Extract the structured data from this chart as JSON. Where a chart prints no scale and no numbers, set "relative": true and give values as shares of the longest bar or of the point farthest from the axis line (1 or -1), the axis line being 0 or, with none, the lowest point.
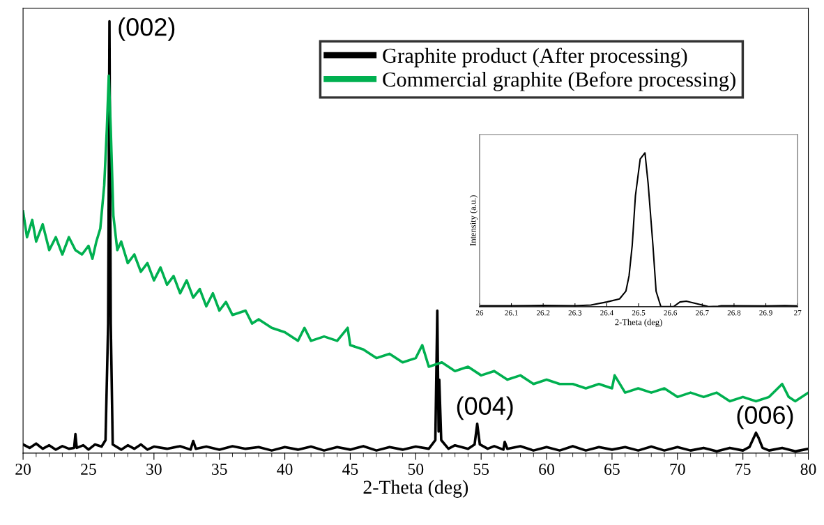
{
  "chart_data": [
    {
      "type": "line",
      "relative": true,
      "xlabel": "2-Theta (deg)",
      "xlim": [
        20,
        80
      ],
      "xticks": [
        20,
        25,
        30,
        35,
        40,
        45,
        50,
        55,
        60,
        65,
        70,
        75,
        80
      ],
      "tick_labels": "x",
      "legend": "top right",
      "grid": false,
      "marker": "none",
      "line_style": "solid",
      "series": [
        {
          "name": "Graphite product (After processing)",
          "color": "#000000",
          "x": [
            20,
            20.5,
            21,
            21.5,
            22,
            22.5,
            23,
            23.5,
            23.9,
            24,
            24.1,
            24.6,
            25,
            25.5,
            26,
            26.3,
            26.5,
            26.6,
            26.7,
            26.85,
            27.5,
            28,
            28.5,
            29,
            29.5,
            30,
            31,
            32,
            32.8,
            33,
            33.2,
            34,
            35,
            36,
            37,
            38,
            39,
            40,
            41,
            42,
            43,
            44,
            45,
            46,
            47,
            48,
            49,
            50,
            51,
            51.5,
            51.65,
            51.75,
            51.8,
            51.95,
            52.5,
            53,
            54,
            54.5,
            54.7,
            54.9,
            55.5,
            56,
            56.7,
            56.8,
            57,
            58,
            59,
            60,
            61,
            62,
            63,
            64,
            65,
            66,
            67,
            68,
            69,
            70,
            71,
            72,
            73,
            74,
            75,
            75.5,
            76,
            76.2,
            76.5,
            77,
            78,
            79,
            80
          ],
          "values": [
            0.02,
            0.012,
            0.022,
            0.01,
            0.018,
            0.008,
            0.016,
            0.01,
            0.012,
            0.044,
            0.012,
            0.018,
            0.008,
            0.02,
            0.015,
            0.03,
            0.3,
            1.0,
            0.3,
            0.02,
            0.008,
            0.018,
            0.01,
            0.02,
            0.008,
            0.015,
            0.01,
            0.016,
            0.008,
            0.028,
            0.01,
            0.015,
            0.008,
            0.016,
            0.01,
            0.014,
            0.006,
            0.014,
            0.008,
            0.015,
            0.006,
            0.014,
            0.008,
            0.016,
            0.006,
            0.014,
            0.008,
            0.015,
            0.01,
            0.03,
            0.33,
            0.05,
            0.17,
            0.03,
            0.01,
            0.018,
            0.01,
            0.02,
            0.068,
            0.02,
            0.01,
            0.016,
            0.008,
            0.026,
            0.01,
            0.016,
            0.006,
            0.014,
            0.006,
            0.016,
            0.006,
            0.014,
            0.008,
            0.014,
            0.006,
            0.015,
            0.006,
            0.014,
            0.006,
            0.012,
            0.004,
            0.012,
            0.006,
            0.014,
            0.047,
            0.035,
            0.012,
            0.006,
            0.012,
            0.004,
            0.01
          ]
        },
        {
          "name": "Commercial graphite (Before processing)",
          "color": "#00b050",
          "x": [
            20,
            20.3,
            20.7,
            21,
            21.5,
            22,
            22.5,
            23,
            23.5,
            24,
            24.5,
            25,
            25.3,
            25.6,
            25.9,
            26.2,
            26.4,
            26.55,
            26.7,
            26.9,
            27.2,
            27.5,
            28,
            28.5,
            29,
            29.5,
            30,
            30.5,
            31,
            31.5,
            32,
            32.5,
            33,
            33.5,
            34,
            34.5,
            35,
            35.5,
            36,
            37,
            37.5,
            38,
            39,
            40,
            41,
            41.5,
            42,
            43,
            44,
            44.8,
            45,
            46,
            47,
            48,
            49,
            50,
            50.5,
            51,
            52,
            53,
            54,
            55,
            56,
            57,
            58,
            59,
            60,
            61,
            62,
            63,
            64,
            65,
            65.2,
            66,
            67,
            68,
            69,
            70,
            71,
            72,
            73,
            74,
            75,
            76,
            77,
            78,
            78.5,
            79,
            80
          ],
          "values": [
            0.56,
            0.5,
            0.54,
            0.49,
            0.53,
            0.47,
            0.5,
            0.46,
            0.5,
            0.47,
            0.46,
            0.48,
            0.45,
            0.49,
            0.52,
            0.62,
            0.75,
            0.874,
            0.75,
            0.55,
            0.47,
            0.49,
            0.44,
            0.46,
            0.42,
            0.44,
            0.4,
            0.43,
            0.39,
            0.41,
            0.37,
            0.4,
            0.36,
            0.38,
            0.34,
            0.37,
            0.33,
            0.35,
            0.32,
            0.33,
            0.3,
            0.31,
            0.29,
            0.28,
            0.26,
            0.29,
            0.26,
            0.27,
            0.26,
            0.29,
            0.25,
            0.24,
            0.22,
            0.23,
            0.21,
            0.22,
            0.25,
            0.2,
            0.21,
            0.19,
            0.2,
            0.18,
            0.19,
            0.17,
            0.18,
            0.16,
            0.17,
            0.16,
            0.16,
            0.15,
            0.16,
            0.15,
            0.18,
            0.14,
            0.15,
            0.14,
            0.15,
            0.13,
            0.14,
            0.13,
            0.14,
            0.12,
            0.13,
            0.12,
            0.13,
            0.16,
            0.13,
            0.12,
            0.14
          ]
        }
      ],
      "annotations": [
        {
          "text": "(002)",
          "x": 26.6,
          "y": 1.0
        },
        {
          "text": "(004)",
          "x": 54.7,
          "y": 0.068
        },
        {
          "text": "(006)",
          "x": 76.1,
          "y": 0.047
        }
      ]
    },
    {
      "type": "line",
      "relative": true,
      "xlabel": "2-Theta (deg)",
      "ylabel": "Intensity (a.u.)",
      "xlim": [
        26,
        27
      ],
      "xticks": [
        26,
        26.1,
        26.2,
        26.3,
        26.4,
        26.5,
        26.6,
        26.7,
        26.8,
        26.9,
        27
      ],
      "tick_labels": "x",
      "grid": false,
      "marker": "none",
      "line_style": "solid",
      "series": [
        {
          "color": "#000000",
          "x": [
            26,
            26.1,
            26.2,
            26.3,
            26.35,
            26.4,
            26.44,
            26.46,
            26.47,
            26.48,
            26.49,
            26.505,
            26.52,
            26.53,
            26.545,
            26.555,
            26.57,
            26.61,
            26.63,
            26.65,
            26.7,
            26.72,
            26.75,
            26.76,
            26.8,
            26.9,
            26.96,
            27
          ],
          "values": [
            0.005,
            0.005,
            0.008,
            0.006,
            0.01,
            0.03,
            0.05,
            0.1,
            0.2,
            0.4,
            0.72,
            0.96,
            1.0,
            0.8,
            0.4,
            0.1,
            0.0,
            0.0,
            0.03,
            0.035,
            0.01,
            0.0,
            0.002,
            0.006,
            0.006,
            0.004,
            0.007,
            0.004
          ]
        }
      ]
    }
  ]
}
